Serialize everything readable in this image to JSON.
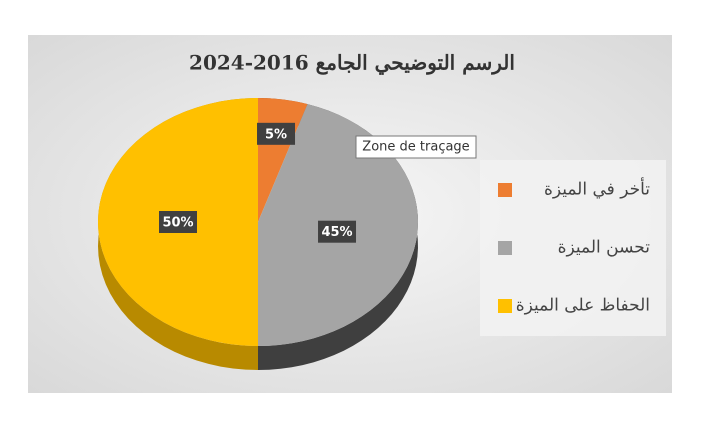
{
  "chart_data": {
    "type": "pie3d",
    "title": "الرسم التوضيحي الجامع 2016-2024",
    "categories": [
      "تأخر في الميزة",
      "تحسن الميزة",
      "الحفاظ على الميزة"
    ],
    "values": [
      5,
      45,
      50
    ],
    "value_labels": [
      "5%",
      "45%",
      "50%"
    ],
    "colors": [
      "#ed7d31",
      "#a5a5a5",
      "#ffc000"
    ],
    "legend": "right"
  },
  "tooltip": "Zone de traçage"
}
